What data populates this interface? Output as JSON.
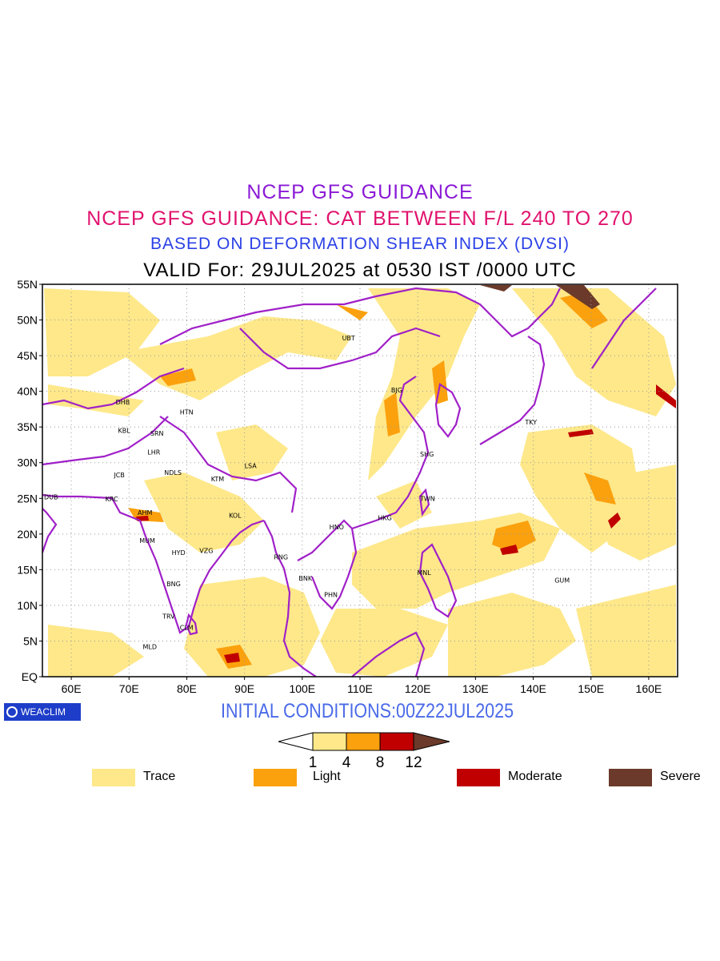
{
  "titles": {
    "line1": "NCEP GFS GUIDANCE",
    "line2": "NCEP GFS GUIDANCE: CAT BETWEEN F/L 240 TO 270",
    "line3": "BASED ON DEFORMATION SHEAR INDEX (DVSI)",
    "line4": "VALID For: 29JUL2025 at 0530 IST /0000 UTC"
  },
  "map": {
    "lon_range": [
      55,
      165
    ],
    "lat_range": [
      0,
      55
    ],
    "lat_labels": [
      "EQ",
      "5N",
      "10N",
      "15N",
      "20N",
      "25N",
      "30N",
      "35N",
      "40N",
      "45N",
      "50N",
      "55N"
    ],
    "lon_labels": [
      "60E",
      "70E",
      "80E",
      "90E",
      "100E",
      "110E",
      "120E",
      "130E",
      "140E",
      "150E",
      "160E"
    ],
    "colors": {
      "trace": "#fee88a",
      "light": "#fba10e",
      "moderate": "#c00000",
      "severe": "#6b3a2a",
      "coast": "#a020c8"
    },
    "cities": [
      {
        "name": "UBT",
        "lon": 108,
        "lat": 47.5
      },
      {
        "name": "BJG",
        "lon": 116.5,
        "lat": 40.2
      },
      {
        "name": "TKY",
        "lon": 139.7,
        "lat": 35.7
      },
      {
        "name": "SHG",
        "lon": 121.5,
        "lat": 31.2
      },
      {
        "name": "TWN",
        "lon": 121.5,
        "lat": 25
      },
      {
        "name": "HKG",
        "lon": 114.2,
        "lat": 22.3
      },
      {
        "name": "HNO",
        "lon": 105.8,
        "lat": 21
      },
      {
        "name": "BNK",
        "lon": 100.5,
        "lat": 13.8
      },
      {
        "name": "PHN",
        "lon": 104.9,
        "lat": 11.5
      },
      {
        "name": "MNL",
        "lon": 121,
        "lat": 14.6
      },
      {
        "name": "GUM",
        "lon": 144.8,
        "lat": 13.5
      },
      {
        "name": "RNG",
        "lon": 96.2,
        "lat": 16.8
      },
      {
        "name": "LSA",
        "lon": 91.1,
        "lat": 29.6
      },
      {
        "name": "KTM",
        "lon": 85.3,
        "lat": 27.7
      },
      {
        "name": "KOL",
        "lon": 88.4,
        "lat": 22.6
      },
      {
        "name": "VZG",
        "lon": 83.3,
        "lat": 17.7
      },
      {
        "name": "HYD",
        "lon": 78.5,
        "lat": 17.4
      },
      {
        "name": "BNG",
        "lon": 77.6,
        "lat": 13
      },
      {
        "name": "TRV",
        "lon": 76.9,
        "lat": 8.5
      },
      {
        "name": "CLM",
        "lon": 79.9,
        "lat": 6.9
      },
      {
        "name": "MLD",
        "lon": 73.5,
        "lat": 4.2
      },
      {
        "name": "MUM",
        "lon": 72.9,
        "lat": 19.1
      },
      {
        "name": "AHM",
        "lon": 72.6,
        "lat": 23
      },
      {
        "name": "KRC",
        "lon": 67,
        "lat": 24.9
      },
      {
        "name": "DUB",
        "lon": 55.3,
        "lat": 25.2
      },
      {
        "name": "JCB",
        "lon": 68.5,
        "lat": 28.3
      },
      {
        "name": "NDLS",
        "lon": 77.2,
        "lat": 28.6
      },
      {
        "name": "LHR",
        "lon": 74.3,
        "lat": 31.5
      },
      {
        "name": "SRN",
        "lon": 74.8,
        "lat": 34.1
      },
      {
        "name": "KBL",
        "lon": 69.2,
        "lat": 34.5
      },
      {
        "name": "DHB",
        "lon": 68.8,
        "lat": 38.5
      },
      {
        "name": "HTN",
        "lon": 79.9,
        "lat": 37.1
      }
    ]
  },
  "logo": {
    "text": "WEACLIM"
  },
  "initial_conditions": "INITIAL CONDITIONS:00Z22JUL2025",
  "colorbar": {
    "ticks": [
      "1",
      "4",
      "8",
      "12"
    ],
    "colors": [
      "#fee88a",
      "#fba10e",
      "#c00000"
    ],
    "under_color": "#ffffff",
    "over_color": "#6b3a2a"
  },
  "legend": [
    {
      "label": "Trace",
      "color": "#fee88a"
    },
    {
      "label": "Light",
      "color": "#fba10e"
    },
    {
      "label": "Moderate",
      "color": "#c00000"
    },
    {
      "label": "Severe",
      "color": "#6b3a2a"
    }
  ]
}
